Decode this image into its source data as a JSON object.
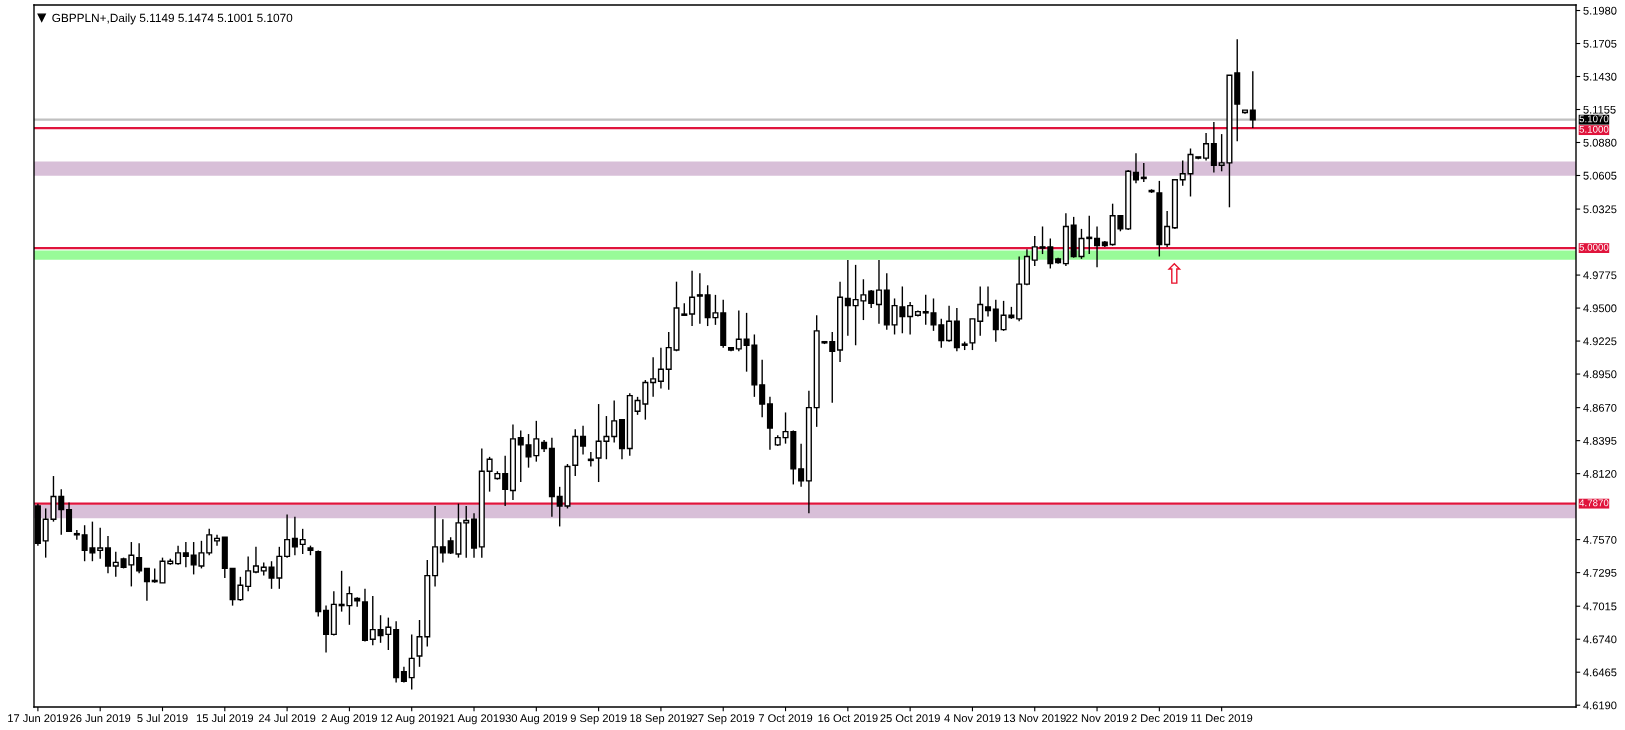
{
  "chart_data": {
    "type": "candlestick",
    "title": "GBPPLN+,Daily 5.1149 5.1474 5.1001 5.1070",
    "categories": [
      "17 Jun 2019",
      null,
      null,
      null,
      null,
      null,
      null,
      null,
      "26 Jun 2019",
      null,
      null,
      null,
      null,
      null,
      null,
      null,
      "5 Jul 2019",
      null,
      null,
      null,
      null,
      null,
      null,
      null,
      "15 Jul 2019",
      null,
      null,
      null,
      null,
      null,
      null,
      null,
      "24 Jul 2019",
      null,
      null,
      null,
      null,
      null,
      null,
      null,
      "2 Aug 2019",
      null,
      null,
      null,
      null,
      null,
      null,
      null,
      "12 Aug 2019",
      null,
      null,
      null,
      null,
      null,
      null,
      null,
      "21 Aug 2019",
      null,
      null,
      null,
      null,
      null,
      null,
      null,
      "30 Aug 2019",
      null,
      null,
      null,
      null,
      null,
      null,
      null,
      "9 Sep 2019",
      null,
      null,
      null,
      null,
      null,
      null,
      null,
      "18 Sep 2019",
      null,
      null,
      null,
      null,
      null,
      null,
      null,
      "27 Sep 2019",
      null,
      null,
      null,
      null,
      null,
      null,
      null,
      "7 Oct 2019",
      null,
      null,
      null,
      null,
      null,
      null,
      null,
      "16 Oct 2019",
      null,
      null,
      null,
      null,
      null,
      null,
      null,
      "25 Oct 2019",
      null,
      null,
      null,
      null,
      null,
      null,
      null,
      "4 Nov 2019",
      null,
      null,
      null,
      null,
      null,
      null,
      null,
      "13 Nov 2019",
      null,
      null,
      null,
      null,
      null,
      null,
      null,
      "22 Nov 2019",
      null,
      null,
      null,
      null,
      null,
      null,
      null,
      "2 Dec 2019",
      null,
      null,
      null,
      null,
      null,
      null,
      null,
      "11 Dec 2019",
      null,
      null,
      null,
      null,
      null,
      null,
      null,
      null,
      null,
      null,
      null,
      null,
      null,
      null,
      null,
      null,
      null,
      null,
      null,
      null,
      null,
      null,
      null,
      null,
      null,
      null,
      null,
      null,
      null,
      null,
      null,
      null,
      null,
      null,
      null,
      null,
      null,
      null,
      null,
      null,
      null,
      null,
      null,
      null,
      null
    ],
    "ohlc": [
      [
        4.785,
        4.787,
        4.752,
        4.754
      ],
      [
        4.756,
        4.783,
        4.742,
        4.774
      ],
      [
        4.774,
        4.81,
        4.772,
        4.793
      ],
      [
        4.793,
        4.799,
        4.761,
        4.782
      ],
      [
        4.782,
        4.788,
        4.764,
        4.764
      ],
      [
        4.762,
        4.765,
        4.757,
        4.761
      ],
      [
        4.761,
        4.769,
        4.739,
        4.748
      ],
      [
        4.75,
        4.772,
        4.739,
        4.746
      ],
      [
        4.748,
        4.767,
        4.741,
        4.75
      ],
      [
        4.75,
        4.76,
        4.729,
        4.735
      ],
      [
        4.735,
        4.747,
        4.726,
        4.738
      ],
      [
        4.741,
        4.742,
        4.733,
        4.734
      ],
      [
        4.736,
        4.755,
        4.718,
        4.744
      ],
      [
        4.742,
        4.754,
        4.729,
        4.731
      ],
      [
        4.733,
        4.733,
        4.706,
        4.722
      ],
      [
        4.723,
        4.733,
        4.721,
        4.722
      ],
      [
        4.721,
        4.742,
        4.721,
        4.739
      ],
      [
        4.737,
        4.741,
        4.736,
        4.739
      ],
      [
        4.737,
        4.752,
        4.736,
        4.746
      ],
      [
        4.746,
        4.755,
        4.734,
        4.743
      ],
      [
        4.744,
        4.755,
        4.728,
        4.736
      ],
      [
        4.735,
        4.756,
        4.733,
        4.746
      ],
      [
        4.746,
        4.766,
        4.744,
        4.761
      ],
      [
        4.756,
        4.761,
        4.752,
        4.758
      ],
      [
        4.759,
        4.759,
        4.725,
        4.733
      ],
      [
        4.733,
        4.733,
        4.702,
        4.707
      ],
      [
        4.707,
        4.726,
        4.706,
        4.719
      ],
      [
        4.718,
        4.743,
        4.714,
        4.731
      ],
      [
        4.73,
        4.751,
        4.729,
        4.735
      ],
      [
        4.731,
        4.738,
        4.727,
        4.734
      ],
      [
        4.734,
        4.739,
        4.716,
        4.725
      ],
      [
        4.725,
        4.751,
        4.716,
        4.743
      ],
      [
        4.743,
        4.778,
        4.742,
        4.757
      ],
      [
        4.758,
        4.776,
        4.744,
        4.751
      ],
      [
        4.753,
        4.766,
        4.745,
        4.757
      ],
      [
        4.75,
        4.752,
        4.744,
        4.748
      ],
      [
        4.747,
        4.748,
        4.693,
        4.697
      ],
      [
        4.698,
        4.702,
        4.663,
        4.678
      ],
      [
        4.678,
        4.714,
        4.677,
        4.703
      ],
      [
        4.702,
        4.731,
        4.697,
        4.703
      ],
      [
        4.702,
        4.718,
        4.686,
        4.712
      ],
      [
        4.708,
        4.709,
        4.701,
        4.706
      ],
      [
        4.705,
        4.716,
        4.672,
        4.673
      ],
      [
        4.674,
        4.71,
        4.669,
        4.682
      ],
      [
        4.682,
        4.694,
        4.671,
        4.677
      ],
      [
        4.678,
        4.692,
        4.665,
        4.684
      ],
      [
        4.682,
        4.689,
        4.638,
        4.642
      ],
      [
        4.647,
        4.651,
        4.638,
        4.639
      ],
      [
        4.642,
        4.678,
        4.632,
        4.658
      ],
      [
        4.66,
        4.69,
        4.651,
        4.676
      ],
      [
        4.676,
        4.74,
        4.668,
        4.727
      ],
      [
        4.727,
        4.785,
        4.718,
        4.751
      ],
      [
        4.751,
        4.774,
        4.738,
        4.746
      ],
      [
        4.756,
        4.759,
        4.745,
        4.746
      ],
      [
        4.745,
        4.787,
        4.742,
        4.771
      ],
      [
        4.771,
        4.785,
        4.742,
        4.773
      ],
      [
        4.774,
        4.779,
        4.742,
        4.75
      ],
      [
        4.751,
        4.833,
        4.742,
        4.814
      ],
      [
        4.814,
        4.826,
        4.797,
        4.824
      ],
      [
        4.808,
        4.814,
        4.807,
        4.812
      ],
      [
        4.812,
        4.827,
        4.785,
        4.799
      ],
      [
        4.798,
        4.853,
        4.79,
        4.841
      ],
      [
        4.842,
        4.848,
        4.805,
        4.836
      ],
      [
        4.836,
        4.845,
        4.817,
        4.826
      ],
      [
        4.827,
        4.856,
        4.822,
        4.841
      ],
      [
        4.838,
        4.84,
        4.83,
        4.833
      ],
      [
        4.833,
        4.842,
        4.776,
        4.793
      ],
      [
        4.793,
        4.801,
        4.768,
        4.785
      ],
      [
        4.785,
        4.82,
        4.783,
        4.818
      ],
      [
        4.819,
        4.849,
        4.81,
        4.843
      ],
      [
        4.843,
        4.852,
        4.828,
        4.835
      ],
      [
        4.823,
        4.83,
        4.818,
        4.824
      ],
      [
        4.825,
        4.87,
        4.805,
        4.839
      ],
      [
        4.839,
        4.86,
        4.824,
        4.843
      ],
      [
        4.843,
        4.873,
        4.838,
        4.856
      ],
      [
        4.857,
        4.857,
        4.824,
        4.833
      ],
      [
        4.833,
        4.879,
        4.827,
        4.877
      ],
      [
        4.864,
        4.876,
        4.861,
        4.873
      ],
      [
        4.87,
        4.89,
        4.857,
        4.888
      ],
      [
        4.888,
        4.909,
        4.876,
        4.891
      ],
      [
        4.889,
        4.917,
        4.883,
        4.899
      ],
      [
        4.899,
        4.93,
        4.882,
        4.917
      ],
      [
        4.915,
        4.972,
        4.914,
        4.95
      ],
      [
        4.944,
        4.954,
        4.944,
        4.945
      ],
      [
        4.945,
        4.981,
        4.935,
        4.959
      ],
      [
        4.961,
        4.979,
        4.937,
        4.96
      ],
      [
        4.961,
        4.969,
        4.935,
        4.942
      ],
      [
        4.942,
        4.961,
        4.936,
        4.946
      ],
      [
        4.946,
        4.957,
        4.917,
        4.919
      ],
      [
        4.917,
        4.917,
        4.914,
        4.915
      ],
      [
        4.916,
        4.948,
        4.914,
        4.924
      ],
      [
        4.924,
        4.946,
        4.897,
        4.919
      ],
      [
        4.919,
        4.928,
        4.876,
        4.886
      ],
      [
        4.886,
        4.907,
        4.859,
        4.87
      ],
      [
        4.87,
        4.876,
        4.832,
        4.85
      ],
      [
        4.836,
        4.844,
        4.835,
        4.842
      ],
      [
        4.842,
        4.863,
        4.837,
        4.847
      ],
      [
        4.847,
        4.848,
        4.803,
        4.816
      ],
      [
        4.816,
        4.837,
        4.801,
        4.806
      ],
      [
        4.806,
        4.881,
        4.779,
        4.867
      ],
      [
        4.867,
        4.944,
        4.851,
        4.931
      ],
      [
        4.921,
        4.922,
        4.92,
        4.922
      ],
      [
        4.922,
        4.93,
        4.871,
        4.914
      ],
      [
        4.915,
        4.972,
        4.905,
        4.959
      ],
      [
        4.958,
        4.99,
        4.927,
        4.952
      ],
      [
        4.952,
        4.986,
        4.919,
        4.957
      ],
      [
        4.956,
        4.974,
        4.94,
        4.961
      ],
      [
        4.964,
        4.965,
        4.95,
        4.954
      ],
      [
        4.953,
        4.99,
        4.937,
        4.965
      ],
      [
        4.965,
        4.979,
        4.932,
        4.936
      ],
      [
        4.936,
        4.958,
        4.928,
        4.952
      ],
      [
        4.951,
        4.968,
        4.929,
        4.943
      ],
      [
        4.943,
        4.955,
        4.928,
        4.952
      ],
      [
        4.944,
        4.948,
        4.943,
        4.947
      ],
      [
        4.946,
        4.961,
        4.936,
        4.947
      ],
      [
        4.946,
        4.958,
        4.931,
        4.936
      ],
      [
        4.936,
        4.941,
        4.917,
        4.923
      ],
      [
        4.923,
        4.952,
        4.922,
        4.939
      ],
      [
        4.939,
        4.95,
        4.914,
        4.917
      ],
      [
        4.92,
        4.922,
        4.915,
        4.919
      ],
      [
        4.921,
        4.941,
        4.915,
        4.941
      ],
      [
        4.939,
        4.968,
        4.927,
        4.953
      ],
      [
        4.951,
        4.968,
        4.943,
        4.948
      ],
      [
        4.949,
        4.957,
        4.922,
        4.932
      ],
      [
        4.932,
        4.956,
        4.931,
        4.944
      ],
      [
        4.944,
        4.951,
        4.941,
        4.942
      ],
      [
        4.941,
        4.993,
        4.939,
        4.97
      ],
      [
        4.97,
        4.999,
        4.969,
        4.993
      ],
      [
        4.99,
        5.01,
        4.985,
        5.001
      ],
      [
        5.0,
        5.018,
        4.995,
        5.001
      ],
      [
        5.001,
        5.008,
        4.983,
        4.987
      ],
      [
        4.991,
        4.992,
        4.987,
        4.988
      ],
      [
        4.987,
        5.029,
        4.985,
        5.018
      ],
      [
        5.019,
        5.026,
        4.992,
        4.993
      ],
      [
        4.993,
        5.016,
        4.991,
        5.008
      ],
      [
        5.008,
        5.027,
        4.995,
        5.009
      ],
      [
        5.008,
        5.018,
        4.984,
        5.002
      ],
      [
        5.005,
        5.006,
        5.001,
        5.002
      ],
      [
        5.003,
        5.037,
        5.002,
        5.027
      ],
      [
        5.027,
        5.027,
        5.014,
        5.016
      ],
      [
        5.016,
        5.065,
        5.015,
        5.064
      ],
      [
        5.063,
        5.079,
        5.054,
        5.057
      ],
      [
        5.058,
        5.071,
        5.055,
        5.059
      ],
      [
        5.048,
        5.049,
        5.046,
        5.047
      ],
      [
        5.046,
        5.056,
        4.993,
        5.003
      ],
      [
        5.003,
        5.031,
        5.001,
        5.018
      ],
      [
        5.017,
        5.057,
        5.016,
        5.057
      ],
      [
        5.057,
        5.073,
        5.052,
        5.062
      ],
      [
        5.062,
        5.083,
        5.043,
        5.078
      ],
      [
        5.075,
        5.076,
        5.074,
        5.076
      ],
      [
        5.075,
        5.096,
        5.073,
        5.087
      ],
      [
        5.087,
        5.105,
        5.063,
        5.069
      ],
      [
        5.069,
        5.095,
        5.064,
        5.071
      ],
      [
        5.071,
        5.144,
        5.034,
        5.144
      ],
      [
        5.146,
        5.174,
        5.089,
        5.12
      ],
      [
        5.113,
        5.115,
        5.112,
        5.115
      ],
      [
        5.1149,
        5.1474,
        5.1001,
        5.107
      ],
      null,
      null,
      null,
      null,
      null,
      null,
      null,
      null,
      null,
      null,
      null,
      null,
      null,
      null,
      null,
      null,
      null,
      null,
      null,
      null,
      null,
      null,
      null,
      null,
      null,
      null,
      null,
      null,
      null,
      null,
      null,
      null,
      null,
      null,
      null,
      null,
      null,
      null,
      null,
      null,
      null
    ],
    "ylim": [
      4.6175,
      5.2026
    ],
    "yticks": [
      {
        "value": 5.198,
        "label": "5.1980"
      },
      {
        "value": 5.1705,
        "label": "5.1705"
      },
      {
        "value": 5.143,
        "label": "5.1430"
      },
      {
        "value": 5.1155,
        "label": "5.1155"
      },
      {
        "value": 5.088,
        "label": "5.0880"
      },
      {
        "value": 5.0605,
        "label": "5.0605"
      },
      {
        "value": 5.0325,
        "label": "5.0325"
      },
      {
        "value": 4.9775,
        "label": "4.9775"
      },
      {
        "value": 4.95,
        "label": "4.9500"
      },
      {
        "value": 4.9225,
        "label": "4.9225"
      },
      {
        "value": 4.895,
        "label": "4.8950"
      },
      {
        "value": 4.867,
        "label": "4.8670"
      },
      {
        "value": 4.8395,
        "label": "4.8395"
      },
      {
        "value": 4.812,
        "label": "4.8120"
      },
      {
        "value": 4.757,
        "label": "4.7570"
      },
      {
        "value": 4.7295,
        "label": "4.7295"
      },
      {
        "value": 4.7015,
        "label": "4.7015"
      },
      {
        "value": 4.674,
        "label": "4.6740"
      },
      {
        "value": 4.6465,
        "label": "4.6465"
      },
      {
        "value": 4.619,
        "label": "4.6190"
      }
    ],
    "ref_lines": [
      {
        "axis": "y",
        "value": 5.1,
        "label": "5.1000",
        "color": "#e0143c"
      },
      {
        "axis": "y",
        "value": 5.0,
        "label": "5.0000",
        "color": "#e0143c"
      },
      {
        "axis": "y",
        "value": 4.787,
        "label": "4.7870",
        "color": "#e0143c"
      },
      {
        "axis": "y",
        "value": 5.107,
        "label": "5.1070",
        "color": "#c0c0c0"
      }
    ],
    "bands": [
      {
        "axis": "y",
        "from": 5.0602,
        "to": 5.0722,
        "color": "#d8bfd8"
      },
      {
        "axis": "y",
        "from": 4.9902,
        "to": 4.998,
        "color": "#98fb98"
      },
      {
        "axis": "y",
        "from": 4.7748,
        "to": 4.786,
        "color": "#d8bfd8"
      }
    ],
    "annotations": [
      "⇧"
    ]
  }
}
